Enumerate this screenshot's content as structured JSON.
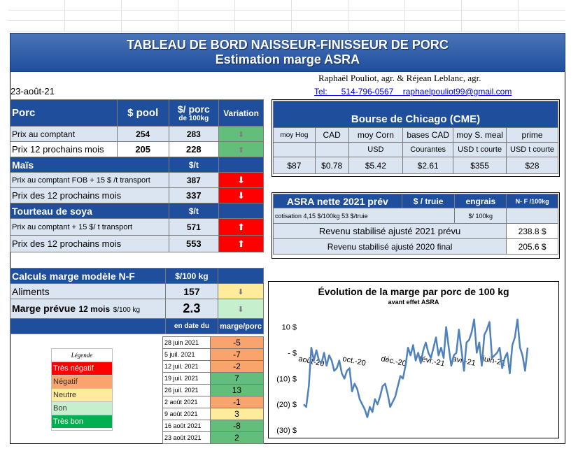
{
  "title": {
    "line1": "TABLEAU DE BORD NAISSEUR-FINISSEUR  DE PORC",
    "line2": "Estimation marge ASRA"
  },
  "authors": "Raphaël Pouliot, agr.    &    Réjean Leblanc, agr.",
  "contact": "Tel:      514-796-0567    raphaelpouliot99@gmail.com",
  "date": "23-août-21",
  "porc": {
    "header": {
      "label": "Porc",
      "pool": "$ pool",
      "porc_l1": "$/ porc",
      "porc_l2": "de 100kg",
      "variation": "Variation"
    },
    "rows": [
      {
        "label": "Prix au comptant",
        "pool": "254",
        "porc": "283",
        "trend": "down",
        "color": "#63be7b"
      },
      {
        "label": "Prix 12 prochains mois",
        "pool": "205",
        "porc": "228",
        "trend": "up",
        "color": "#63be7b"
      }
    ]
  },
  "mais": {
    "header": {
      "label": "Maïs",
      "unit": "$/t"
    },
    "rows": [
      {
        "label": "Prix au comptant  FOB + 15 $ /t transport",
        "value": "387",
        "trend": "down",
        "color": "#ff0000"
      },
      {
        "label": "Prix des 12 prochains mois",
        "value": "337",
        "trend": "down",
        "color": "#ff0000"
      }
    ]
  },
  "soya": {
    "header": {
      "label": "Tourteau de soya",
      "unit": "$/t"
    },
    "rows": [
      {
        "label": "Prix au comptant  + 15 $/ t  transport",
        "value": "571",
        "trend": "up",
        "color": "#ff0000"
      },
      {
        "label": "Prix des 12 prochains mois",
        "value": "553",
        "trend": "up",
        "color": "#ff0000"
      }
    ]
  },
  "calculs": {
    "header": {
      "label": "Calculs marge  modèle N-F",
      "unit": "$/100 kg"
    },
    "aliments": {
      "label": "Aliments",
      "value": "157",
      "trend": "down",
      "color": "#ffeb9c"
    },
    "marge": {
      "label": "Marge prévue",
      "label2": "12 mois",
      "label3": "$/100 kg",
      "value": "2.3",
      "trend": "down",
      "color": "#c6efce"
    }
  },
  "history": {
    "header": {
      "date": "en date du",
      "marge": "marge/porc"
    },
    "rows": [
      {
        "date": "28 juin 2021",
        "value": "-5",
        "color": "#f8a46c"
      },
      {
        "date": "5 juil. 2021",
        "value": "-7",
        "color": "#f8a46c"
      },
      {
        "date": "12 juil. 2021",
        "value": "-2",
        "color": "#f8a46c"
      },
      {
        "date": "19 juil. 2021",
        "value": "7",
        "color": "#63be7b"
      },
      {
        "date": "26 juil. 2021",
        "value": "13",
        "color": "#63be7b"
      },
      {
        "date": "2 août 2021",
        "value": "-1",
        "color": "#f8a46c"
      },
      {
        "date": "9 août 2021",
        "value": "3",
        "color": "#ffeb9c"
      },
      {
        "date": "16 août 2021",
        "value": "-8",
        "color": "#63be7b"
      },
      {
        "date": "23 août 2021",
        "value": "2",
        "color": "#63be7b"
      }
    ]
  },
  "legend": {
    "title": "Légende",
    "items": [
      {
        "label": "Très négatif",
        "color": "#ff0000"
      },
      {
        "label": "Négatif",
        "color": "#f8a46c"
      },
      {
        "label": "Neutre",
        "color": "#ffeb9c"
      },
      {
        "label": "Bon",
        "color": "#c6efce"
      },
      {
        "label": "Très bon",
        "color": "#00b050"
      }
    ]
  },
  "cme": {
    "title": "Bourse de Chicago (CME)",
    "headers": [
      "moy Hog",
      "CAD",
      "moy Corn",
      "bases CAD",
      "moy S. meal",
      "prime"
    ],
    "subheaders": [
      "",
      "",
      "USD",
      "Courantes",
      "USD t courte",
      "USD t courte"
    ],
    "values": [
      "$87",
      "$0.78",
      "$5.42",
      "$2.61",
      "$355",
      "$28"
    ]
  },
  "asra": {
    "title": "ASRA nette 2021 prév",
    "col1": "$ / truie",
    "col2": "engrais",
    "col3": "N- F /100kg",
    "sub_unit": "$/ 100kg",
    "cotisation": "cotisation 4,15 $/100kg  53 $/truie",
    "revenu2021_label": "Revenu stabilisé ajusté 2021 prévu",
    "revenu2021_value": "238.8 $",
    "revenu2020_label": "Revenu stabilisé ajusté 2020 final",
    "revenu2020_value": "205.6 $"
  },
  "chart_data": {
    "type": "line",
    "title": "Évolution de la marge par porc de 100 kg",
    "subtitle": "avant effet ASRA",
    "ytick_labels": [
      "10  $",
      "-   $",
      "(10) $",
      "(20) $",
      "(30) $"
    ],
    "yticks": [
      10,
      0,
      -10,
      -20,
      -30
    ],
    "ylim": [
      -30,
      14
    ],
    "xtick_labels": [
      "août-20",
      "oct.-20",
      "déc.-20",
      "févr.-21",
      "avr.-21",
      "juin-21"
    ],
    "color": "#4f81bd",
    "series": [
      {
        "values": [
          -20,
          -21,
          -13,
          2,
          -3,
          1,
          -3,
          -4,
          0,
          -5,
          -1,
          -3,
          -7,
          -6,
          -3,
          -8,
          -10,
          -7,
          -6,
          -15,
          -12,
          -14,
          -18,
          -20,
          -22,
          -25,
          -21,
          -23,
          -18,
          -20,
          -17,
          -13,
          -12,
          -16,
          -21,
          -19,
          -17,
          -13,
          -9,
          -10,
          -5,
          2,
          -1,
          3,
          -3,
          0,
          -4,
          1,
          4,
          0,
          -2,
          2,
          6,
          -1,
          2,
          -2,
          10,
          2,
          -5,
          -1,
          0,
          9,
          1,
          -7,
          4,
          5,
          8,
          13,
          0,
          4,
          -5,
          7,
          9,
          12,
          -2,
          -1,
          0,
          2,
          -6,
          -2,
          0,
          -8,
          3,
          6,
          13,
          2,
          -1,
          -7,
          2
        ]
      }
    ]
  }
}
